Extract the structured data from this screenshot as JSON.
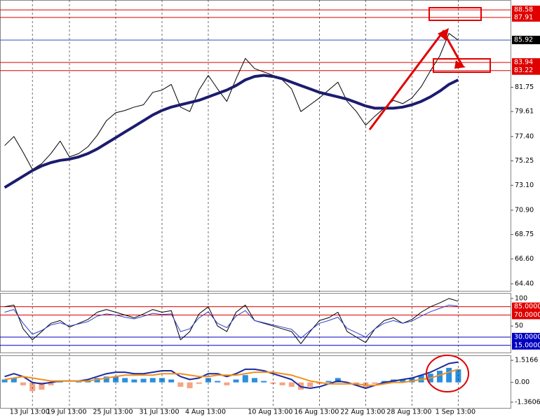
{
  "chart_data": [
    {
      "type": "line",
      "ylim": [
        63.78,
        89.45
      ],
      "yticks": [
        {
          "value": 88.58,
          "label": "88.58"
        },
        {
          "value": 87.91,
          "label": "87.91"
        },
        {
          "value": 85.92,
          "label": "85.92"
        },
        {
          "value": 83.94,
          "label": "83.94"
        },
        {
          "value": 83.22,
          "label": "83.22"
        },
        {
          "value": 81.75,
          "label": "81.75"
        },
        {
          "value": 79.61,
          "label": "79.61"
        },
        {
          "value": 77.4,
          "label": "77.40"
        },
        {
          "value": 75.25,
          "label": "75.25"
        },
        {
          "value": 73.1,
          "label": "73.10"
        },
        {
          "value": 70.9,
          "label": "70.90"
        },
        {
          "value": 68.75,
          "label": "68.75"
        },
        {
          "value": 66.6,
          "label": "66.60"
        },
        {
          "value": 64.4,
          "label": "64.40"
        }
      ],
      "tick_colors": [
        "#e00000",
        "#e00000",
        "#000000",
        "#e00000",
        "#e00000",
        null,
        null,
        null,
        null,
        null,
        null,
        null,
        null,
        null
      ],
      "series": [
        {
          "color": "#000000",
          "width": 1,
          "values": [
            76.6,
            77.4,
            76.0,
            74.5,
            75.0,
            75.9,
            77.0,
            75.6,
            75.9,
            76.5,
            77.5,
            78.8,
            79.5,
            79.7,
            80.0,
            80.2,
            81.3,
            81.5,
            82.0,
            80.0,
            79.6,
            81.5,
            82.8,
            81.6,
            80.5,
            82.5,
            84.3,
            83.4,
            83.1,
            82.8,
            82.4,
            81.6,
            79.6,
            80.2,
            80.8,
            81.5,
            82.2,
            80.5,
            79.6,
            78.4,
            79.2,
            79.9,
            80.6,
            80.3,
            80.8,
            81.8,
            83.2,
            84.5,
            86.5,
            85.9
          ]
        },
        {
          "color": "#1c1c6e",
          "width": 4,
          "values": [
            72.9,
            73.4,
            73.9,
            74.4,
            74.8,
            75.1,
            75.3,
            75.4,
            75.6,
            75.9,
            76.3,
            76.8,
            77.3,
            77.8,
            78.3,
            78.8,
            79.3,
            79.7,
            80.0,
            80.2,
            80.4,
            80.6,
            80.9,
            81.2,
            81.5,
            81.9,
            82.4,
            82.7,
            82.8,
            82.7,
            82.5,
            82.2,
            81.9,
            81.6,
            81.3,
            81.1,
            80.9,
            80.7,
            80.4,
            80.1,
            79.9,
            79.9,
            79.9,
            80.0,
            80.2,
            80.5,
            80.9,
            81.4,
            82.0,
            82.4
          ]
        }
      ]
    },
    {
      "type": "line",
      "ylim": [
        2,
        110
      ],
      "yticks": [
        100,
        {
          "value": 85,
          "label": "85.0000"
        },
        {
          "value": 70,
          "label": "70.0000"
        },
        50,
        {
          "value": 30,
          "label": "30.0000"
        },
        {
          "value": 15,
          "label": "15.0000"
        }
      ],
      "tick_colors": [
        null,
        "#e00000",
        "#e00000",
        null,
        "#0000c0",
        "#0000c0"
      ],
      "series": [
        {
          "color": "#000000",
          "width": 1,
          "values": [
            85,
            88,
            45,
            25,
            40,
            55,
            60,
            48,
            55,
            62,
            75,
            80,
            75,
            70,
            65,
            72,
            80,
            75,
            78,
            25,
            40,
            72,
            85,
            50,
            40,
            75,
            88,
            60,
            55,
            50,
            45,
            40,
            18,
            40,
            60,
            65,
            75,
            40,
            30,
            20,
            45,
            60,
            65,
            55,
            62,
            75,
            85,
            92,
            100,
            95
          ]
        },
        {
          "color": "#3040d0",
          "width": 1,
          "values": [
            75,
            80,
            55,
            35,
            42,
            52,
            56,
            50,
            54,
            58,
            68,
            72,
            70,
            66,
            63,
            68,
            73,
            71,
            72,
            40,
            45,
            65,
            76,
            55,
            47,
            68,
            78,
            60,
            56,
            52,
            48,
            44,
            28,
            42,
            55,
            60,
            66,
            46,
            38,
            30,
            45,
            55,
            60,
            55,
            59,
            68,
            76,
            82,
            88,
            86
          ]
        }
      ]
    },
    {
      "type": "bar",
      "ylim": [
        -1.75,
        1.86
      ],
      "yticks": [
        1.5166,
        {
          "value": 0,
          "label": "0.00"
        },
        -1.3606
      ],
      "color": "#2a8fe0",
      "negative_color": "#f4a582",
      "values": [
        0.2,
        0.3,
        -0.2,
        -0.6,
        -0.5,
        -0.2,
        0.1,
        0.0,
        0.05,
        0.1,
        0.3,
        0.4,
        0.4,
        0.3,
        0.2,
        0.25,
        0.3,
        0.3,
        0.2,
        -0.3,
        -0.4,
        -0.1,
        0.3,
        0.1,
        -0.2,
        0.2,
        0.5,
        0.3,
        0.1,
        -0.1,
        -0.2,
        -0.3,
        -0.5,
        -0.3,
        -0.1,
        0.1,
        0.3,
        0.0,
        -0.2,
        -0.3,
        -0.1,
        0.1,
        0.2,
        0.2,
        0.3,
        0.5,
        0.6,
        0.8,
        1.0,
        0.9
      ],
      "series": [
        {
          "color": "#1c2aa0",
          "width": 2,
          "values": [
            0.4,
            0.6,
            0.4,
            0.0,
            -0.1,
            0.0,
            0.1,
            0.1,
            0.1,
            0.2,
            0.4,
            0.6,
            0.7,
            0.7,
            0.6,
            0.6,
            0.7,
            0.8,
            0.8,
            0.4,
            0.2,
            0.3,
            0.6,
            0.6,
            0.4,
            0.6,
            0.9,
            0.9,
            0.8,
            0.6,
            0.4,
            0.2,
            -0.3,
            -0.4,
            -0.3,
            -0.1,
            0.1,
            0.0,
            -0.2,
            -0.4,
            -0.2,
            0.0,
            0.1,
            0.2,
            0.3,
            0.5,
            0.7,
            1.0,
            1.3,
            1.4
          ]
        },
        {
          "color": "#f0901e",
          "width": 2,
          "values": [
            0.2,
            0.3,
            0.4,
            0.3,
            0.2,
            0.1,
            0.1,
            0.1,
            0.1,
            0.1,
            0.2,
            0.3,
            0.4,
            0.5,
            0.5,
            0.5,
            0.5,
            0.6,
            0.6,
            0.6,
            0.5,
            0.4,
            0.4,
            0.5,
            0.5,
            0.5,
            0.6,
            0.7,
            0.7,
            0.7,
            0.6,
            0.5,
            0.3,
            0.1,
            0.0,
            -0.1,
            -0.1,
            -0.1,
            -0.1,
            -0.2,
            -0.2,
            -0.1,
            0.0,
            0.0,
            0.1,
            0.2,
            0.3,
            0.5,
            0.7,
            0.9
          ]
        }
      ],
      "categories": [
        null,
        null,
        null,
        "13 Jul 13:00",
        null,
        null,
        null,
        "19 Jul 13:00",
        null,
        null,
        null,
        null,
        "25 Jul 13:00",
        null,
        null,
        null,
        null,
        "31 Jul 13:00",
        null,
        null,
        null,
        null,
        "4 Aug 13:00",
        null,
        null,
        null,
        null,
        null,
        null,
        "10 Aug 13:00",
        null,
        null,
        null,
        null,
        "16 Aug 13:00",
        null,
        null,
        null,
        null,
        "22 Aug 13:00",
        null,
        null,
        null,
        null,
        "28 Aug 13:00",
        null,
        null,
        null,
        null,
        "1 Sep 13:00"
      ]
    }
  ]
}
